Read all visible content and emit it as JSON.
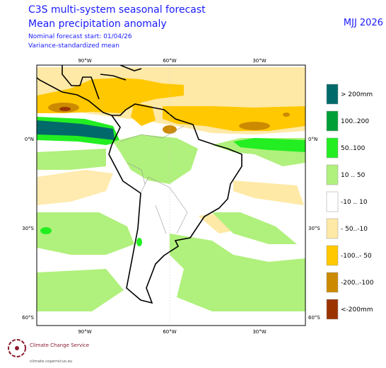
{
  "header": {
    "title": "C3S multi-system seasonal forecast",
    "subtitle": "Mean precipitation anomaly",
    "start": "Nominal forecast start: 01/04/26",
    "method": "Variance-standardized mean",
    "period": "MJJ 2026"
  },
  "map": {
    "lon_labels": [
      "90°W",
      "60°W",
      "30°W"
    ],
    "lat_labels": [
      "0°N",
      "30°S",
      "60°S"
    ]
  },
  "legend": {
    "items": [
      {
        "label": "> 200mm",
        "color": "#006a6a"
      },
      {
        "label": "100..200",
        "color": "#00a037"
      },
      {
        "label": "50..100",
        "color": "#22ee22"
      },
      {
        "label": "10 .. 50",
        "color": "#b0f07c"
      },
      {
        "label": "-10 .. 10",
        "color": "#ffffff"
      },
      {
        "label": "- 50..-10",
        "color": "#ffe9a6"
      },
      {
        "label": "-100..- 50",
        "color": "#ffc800"
      },
      {
        "label": "-200..-100",
        "color": "#cc8a00"
      },
      {
        "label": "<-200mm",
        "color": "#9a3300"
      }
    ]
  },
  "logo": {
    "name": "Climate Change Service",
    "url": "climate.copernicus.eu"
  }
}
